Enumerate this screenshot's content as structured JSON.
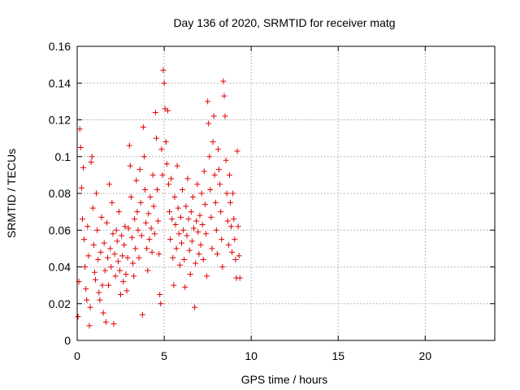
{
  "chart_data": {
    "type": "scatter",
    "title": "Day 136 of 2020, SRMTID for receiver matg",
    "xlabel": "GPS time / hours",
    "ylabel": "SRMTID / TECUs",
    "xlim": [
      0,
      24
    ],
    "ylim": [
      0,
      0.16
    ],
    "x_ticks": [
      0,
      5,
      10,
      15,
      20
    ],
    "x_tick_labels": [
      "0",
      "5",
      "10",
      "15",
      "20"
    ],
    "y_ticks": [
      0,
      0.02,
      0.04,
      0.06,
      0.08,
      0.1,
      0.12,
      0.14,
      0.16
    ],
    "y_tick_labels": [
      "0",
      "0.02",
      "0.04",
      "0.06",
      "0.08",
      "0.1",
      "0.12",
      "0.14",
      "0.16"
    ],
    "grid": true,
    "marker": "+",
    "color": "#e00000",
    "series": [
      {
        "name": "SRMTID",
        "points": [
          [
            0.05,
            0.013
          ],
          [
            0.1,
            0.032
          ],
          [
            0.15,
            0.115
          ],
          [
            0.2,
            0.105
          ],
          [
            0.25,
            0.083
          ],
          [
            0.3,
            0.066
          ],
          [
            0.35,
            0.094
          ],
          [
            0.4,
            0.055
          ],
          [
            0.45,
            0.04
          ],
          [
            0.5,
            0.028
          ],
          [
            0.55,
            0.022
          ],
          [
            0.6,
            0.062
          ],
          [
            0.65,
            0.046
          ],
          [
            0.7,
            0.008
          ],
          [
            0.75,
            0.018
          ],
          [
            0.8,
            0.097
          ],
          [
            0.85,
            0.1
          ],
          [
            0.9,
            0.072
          ],
          [
            0.95,
            0.052
          ],
          [
            1.0,
            0.037
          ],
          [
            1.05,
            0.033
          ],
          [
            1.1,
            0.08
          ],
          [
            1.15,
            0.06
          ],
          [
            1.2,
            0.044
          ],
          [
            1.25,
            0.026
          ],
          [
            1.3,
            0.022
          ],
          [
            1.35,
            0.048
          ],
          [
            1.4,
            0.067
          ],
          [
            1.45,
            0.03
          ],
          [
            1.5,
            0.015
          ],
          [
            1.55,
            0.053
          ],
          [
            1.6,
            0.038
          ],
          [
            1.65,
            0.01
          ],
          [
            1.7,
            0.064
          ],
          [
            1.75,
            0.045
          ],
          [
            1.8,
            0.03
          ],
          [
            1.85,
            0.085
          ],
          [
            1.9,
            0.05
          ],
          [
            1.95,
            0.04
          ],
          [
            2.0,
            0.075
          ],
          [
            2.05,
            0.058
          ],
          [
            2.1,
            0.009
          ],
          [
            2.15,
            0.047
          ],
          [
            2.2,
            0.035
          ],
          [
            2.25,
            0.06
          ],
          [
            2.3,
            0.054
          ],
          [
            2.35,
            0.043
          ],
          [
            2.4,
            0.07
          ],
          [
            2.45,
            0.038
          ],
          [
            2.5,
            0.025
          ],
          [
            2.55,
            0.057
          ],
          [
            2.6,
            0.046
          ],
          [
            2.65,
            0.032
          ],
          [
            2.7,
            0.052
          ],
          [
            2.75,
            0.062
          ],
          [
            2.8,
            0.036
          ],
          [
            2.85,
            0.027
          ],
          [
            2.9,
            0.045
          ],
          [
            2.95,
            0.061
          ],
          [
            3.0,
            0.106
          ],
          [
            3.05,
            0.095
          ],
          [
            3.1,
            0.078
          ],
          [
            3.15,
            0.056
          ],
          [
            3.2,
            0.042
          ],
          [
            3.25,
            0.035
          ],
          [
            3.3,
            0.066
          ],
          [
            3.35,
            0.05
          ],
          [
            3.4,
            0.087
          ],
          [
            3.45,
            0.07
          ],
          [
            3.5,
            0.06
          ],
          [
            3.55,
            0.045
          ],
          [
            3.6,
            0.093
          ],
          [
            3.65,
            0.075
          ],
          [
            3.7,
            0.057
          ],
          [
            3.75,
            0.014
          ],
          [
            3.8,
            0.116
          ],
          [
            3.85,
            0.1
          ],
          [
            3.9,
            0.082
          ],
          [
            3.95,
            0.064
          ],
          [
            4.0,
            0.05
          ],
          [
            4.05,
            0.038
          ],
          [
            4.1,
            0.069
          ],
          [
            4.15,
            0.055
          ],
          [
            4.2,
            0.078
          ],
          [
            4.25,
            0.061
          ],
          [
            4.3,
            0.048
          ],
          [
            4.35,
            0.09
          ],
          [
            4.4,
            0.073
          ],
          [
            4.45,
            0.058
          ],
          [
            4.5,
            0.124
          ],
          [
            4.55,
            0.11
          ],
          [
            4.6,
            0.082
          ],
          [
            4.65,
            0.065
          ],
          [
            4.7,
            0.047
          ],
          [
            4.75,
            0.025
          ],
          [
            4.8,
            0.02
          ],
          [
            4.85,
            0.104
          ],
          [
            4.9,
            0.09
          ],
          [
            4.95,
            0.147
          ],
          [
            5.0,
            0.14
          ],
          [
            5.05,
            0.126
          ],
          [
            5.1,
            0.108
          ],
          [
            5.15,
            0.096
          ],
          [
            5.2,
            0.125
          ],
          [
            5.25,
            0.085
          ],
          [
            5.3,
            0.07
          ],
          [
            5.35,
            0.055
          ],
          [
            5.4,
            0.088
          ],
          [
            5.45,
            0.066
          ],
          [
            5.5,
            0.045
          ],
          [
            5.55,
            0.03
          ],
          [
            5.6,
            0.078
          ],
          [
            5.65,
            0.063
          ],
          [
            5.7,
            0.05
          ],
          [
            5.75,
            0.095
          ],
          [
            5.8,
            0.072
          ],
          [
            5.85,
            0.058
          ],
          [
            5.9,
            0.041
          ],
          [
            5.95,
            0.067
          ],
          [
            6.0,
            0.053
          ],
          [
            6.05,
            0.082
          ],
          [
            6.1,
            0.06
          ],
          [
            6.15,
            0.044
          ],
          [
            6.2,
            0.029
          ],
          [
            6.25,
            0.073
          ],
          [
            6.3,
            0.057
          ],
          [
            6.35,
            0.088
          ],
          [
            6.4,
            0.066
          ],
          [
            6.45,
            0.049
          ],
          [
            6.5,
            0.036
          ],
          [
            6.55,
            0.07
          ],
          [
            6.6,
            0.054
          ],
          [
            6.65,
            0.078
          ],
          [
            6.7,
            0.061
          ],
          [
            6.75,
            0.018
          ],
          [
            6.8,
            0.042
          ],
          [
            6.85,
            0.065
          ],
          [
            6.9,
            0.085
          ],
          [
            6.95,
            0.059
          ],
          [
            7.0,
            0.047
          ],
          [
            7.05,
            0.068
          ],
          [
            7.1,
            0.052
          ],
          [
            7.15,
            0.08
          ],
          [
            7.2,
            0.063
          ],
          [
            7.25,
            0.044
          ],
          [
            7.3,
            0.092
          ],
          [
            7.35,
            0.074
          ],
          [
            7.4,
            0.058
          ],
          [
            7.45,
            0.035
          ],
          [
            7.5,
            0.13
          ],
          [
            7.55,
            0.118
          ],
          [
            7.6,
            0.1
          ],
          [
            7.65,
            0.082
          ],
          [
            7.7,
            0.067
          ],
          [
            7.75,
            0.05
          ],
          [
            7.8,
            0.108
          ],
          [
            7.85,
            0.122
          ],
          [
            7.9,
            0.09
          ],
          [
            7.95,
            0.075
          ],
          [
            8.0,
            0.06
          ],
          [
            8.05,
            0.047
          ],
          [
            8.1,
            0.104
          ],
          [
            8.15,
            0.093
          ],
          [
            8.2,
            0.085
          ],
          [
            8.25,
            0.07
          ],
          [
            8.3,
            0.055
          ],
          [
            8.35,
            0.04
          ],
          [
            8.4,
            0.141
          ],
          [
            8.45,
            0.133
          ],
          [
            8.5,
            0.122
          ],
          [
            8.55,
            0.098
          ],
          [
            8.6,
            0.08
          ],
          [
            8.65,
            0.065
          ],
          [
            8.7,
            0.052
          ],
          [
            8.75,
            0.09
          ],
          [
            8.8,
            0.075
          ],
          [
            8.85,
            0.062
          ],
          [
            8.9,
            0.048
          ],
          [
            8.95,
            0.08
          ],
          [
            9.0,
            0.066
          ],
          [
            9.05,
            0.055
          ],
          [
            9.1,
            0.044
          ],
          [
            9.15,
            0.034
          ],
          [
            9.2,
            0.103
          ],
          [
            9.25,
            0.062
          ],
          [
            9.3,
            0.046
          ],
          [
            9.35,
            0.034
          ]
        ]
      }
    ]
  }
}
